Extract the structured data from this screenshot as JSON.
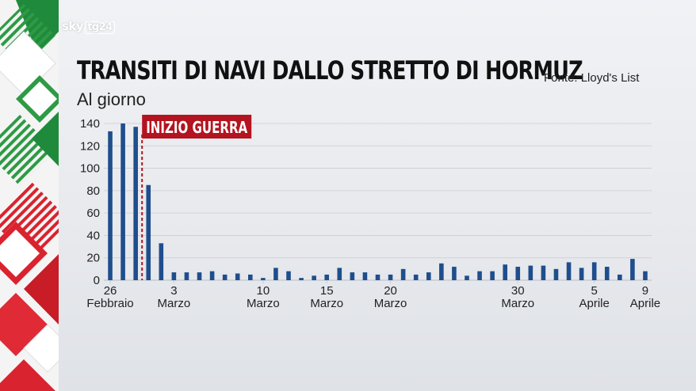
{
  "brand": {
    "name": "sky",
    "channel": "tg24"
  },
  "colors": {
    "bar": "#1f4e8c",
    "war_label_bg": "#b3141f",
    "war_line": "#b3141f",
    "grid": "#c8ccd3",
    "text": "#111111"
  },
  "source": "Fonte: Lloyd's List",
  "chart_data": {
    "type": "bar",
    "title": "TRANSITI DI NAVI DALLO STRETTO DI HORMUZ",
    "subtitle": "Al giorno",
    "xlabel": "",
    "ylabel": "",
    "ylim": [
      0,
      140
    ],
    "yticks": [
      0,
      20,
      40,
      60,
      80,
      100,
      120,
      140
    ],
    "grid": true,
    "legend": "none",
    "dates": [
      "26 Feb",
      "27 Feb",
      "28 Feb",
      "1 Mar",
      "2 Mar",
      "3 Mar",
      "4 Mar",
      "5 Mar",
      "6 Mar",
      "7 Mar",
      "8 Mar",
      "9 Mar",
      "10 Mar",
      "11 Mar",
      "12 Mar",
      "13 Mar",
      "14 Mar",
      "15 Mar",
      "16 Mar",
      "17 Mar",
      "18 Mar",
      "19 Mar",
      "20 Mar",
      "21 Mar",
      "22 Mar",
      "23 Mar",
      "24 Mar",
      "25 Mar",
      "26 Mar",
      "27 Mar",
      "28 Mar",
      "29 Mar",
      "30 Mar",
      "31 Mar",
      "1 Apr",
      "2 Apr",
      "3 Apr",
      "4 Apr",
      "5 Apr",
      "6 Apr",
      "7 Apr",
      "8 Apr",
      "9 Apr"
    ],
    "values": [
      133,
      140,
      137,
      85,
      33,
      7,
      7,
      7,
      8,
      5,
      6,
      5,
      2,
      11,
      8,
      2,
      4,
      5,
      11,
      7,
      7,
      5,
      5,
      10,
      5,
      7,
      15,
      12,
      4,
      8,
      8,
      14,
      12,
      13,
      13,
      10,
      16,
      11,
      16,
      12,
      5,
      19,
      8
    ],
    "x_tick_labels": [
      {
        "date": "26 Feb",
        "line1": "26",
        "line2": "Febbraio"
      },
      {
        "date": "3 Mar",
        "line1": "3",
        "line2": "Marzo"
      },
      {
        "date": "10 Mar",
        "line1": "10",
        "line2": "Marzo"
      },
      {
        "date": "15 Mar",
        "line1": "15",
        "line2": "Marzo"
      },
      {
        "date": "20 Mar",
        "line1": "20",
        "line2": "Marzo"
      },
      {
        "date": "30 Mar",
        "line1": "30",
        "line2": "Marzo"
      },
      {
        "date": "5 Apr",
        "line1": "5",
        "line2": "Aprile"
      },
      {
        "date": "9 Apr",
        "line1": "9",
        "line2": "Aprile"
      }
    ],
    "annotations": [
      {
        "text": "INIZIO GUERRA",
        "between": [
          "28 Feb",
          "1 Mar"
        ]
      }
    ]
  }
}
